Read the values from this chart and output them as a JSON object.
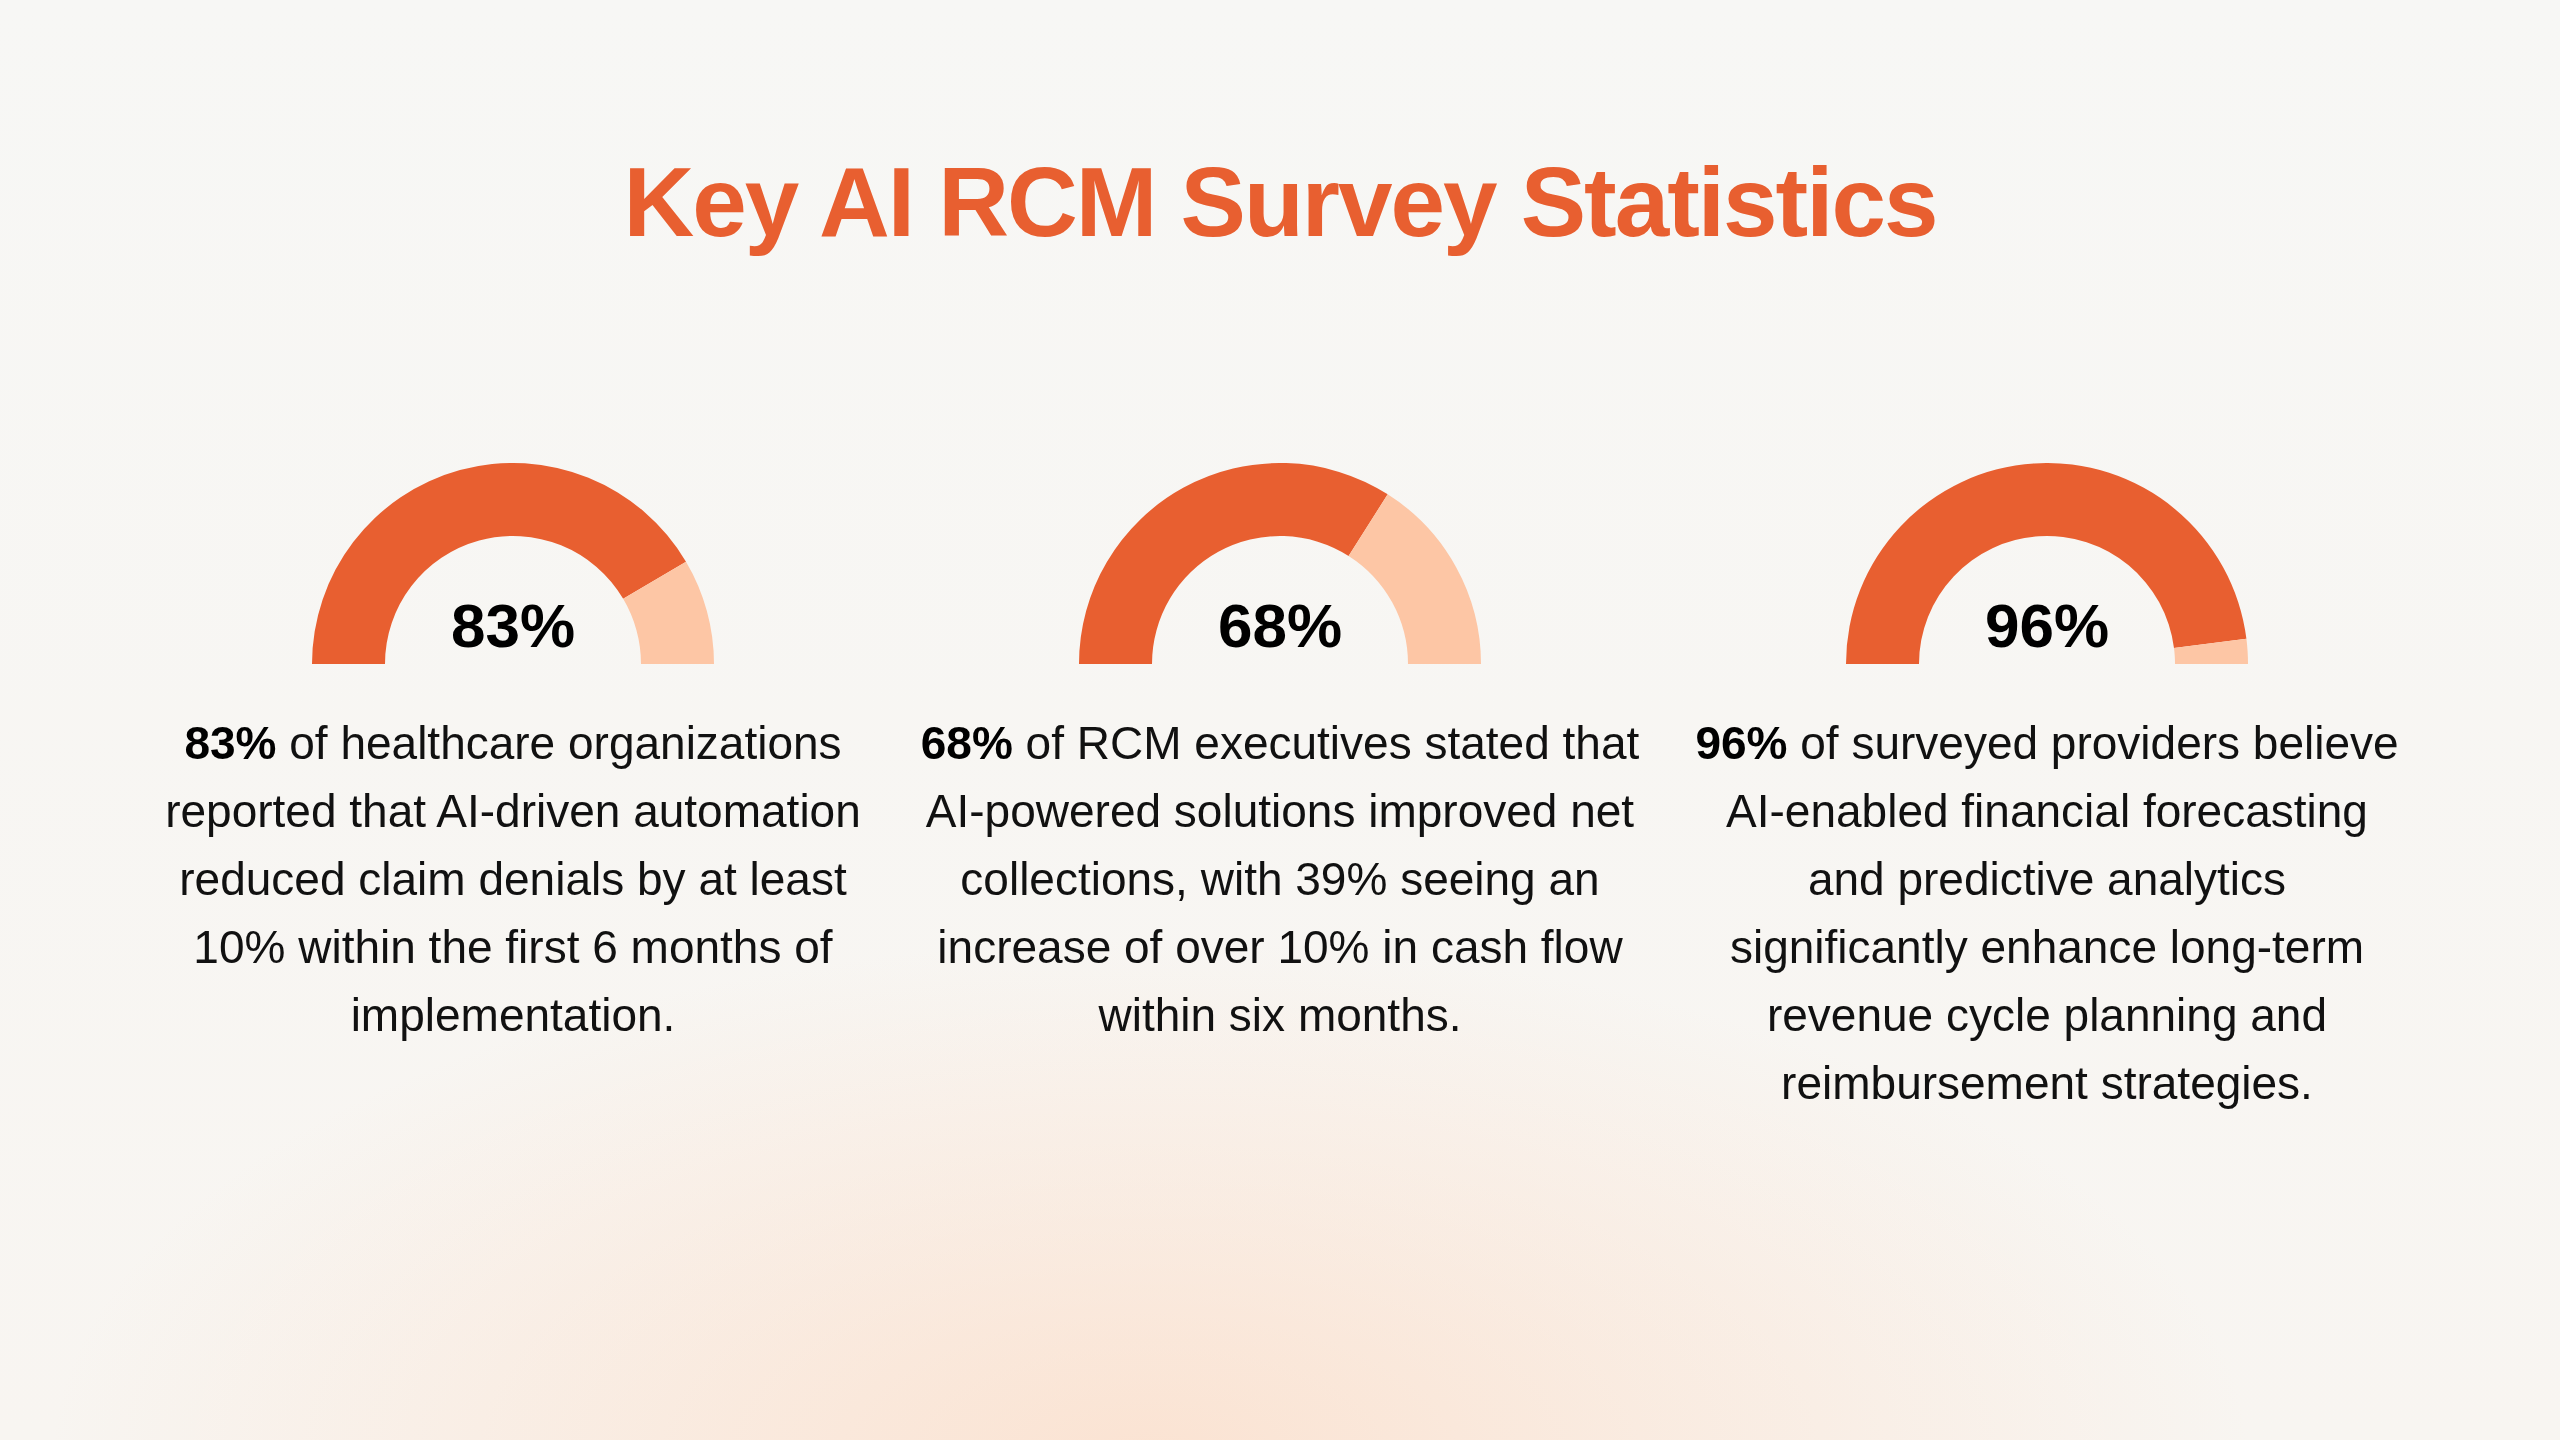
{
  "chart_data": [
    {
      "type": "donut",
      "title": "Key AI RCM Survey Statistics",
      "categories": [
        null,
        null
      ],
      "values": [
        83,
        17
      ],
      "colors": [
        "#e85f30",
        "#fdc6a5"
      ],
      "value_labels": [
        "83%",
        null
      ],
      "annotations": [
        "83% of healthcare organizations reported that AI-driven automation reduced claim denials by at least 10% within the first 6 months of implementation."
      ]
    },
    {
      "type": "donut",
      "categories": [
        null,
        null
      ],
      "values": [
        68,
        32
      ],
      "colors": [
        "#e85f30",
        "#fdc6a5"
      ],
      "value_labels": [
        "68%",
        null
      ],
      "annotations": [
        "68% of RCM executives stated that AI-powered solutions improved net collections, with 39% seeing an increase of over 10% in cash flow within six months."
      ]
    },
    {
      "type": "donut",
      "categories": [
        null,
        null
      ],
      "values": [
        96,
        4
      ],
      "colors": [
        "#e85f30",
        "#fdc6a5"
      ],
      "value_labels": [
        "96%",
        null
      ],
      "annotations": [
        "96% of surveyed providers believe AI-enabled financial forecasting and predictive analytics significantly enhance long-term revenue cycle planning and reimbursement strategies."
      ]
    }
  ]
}
